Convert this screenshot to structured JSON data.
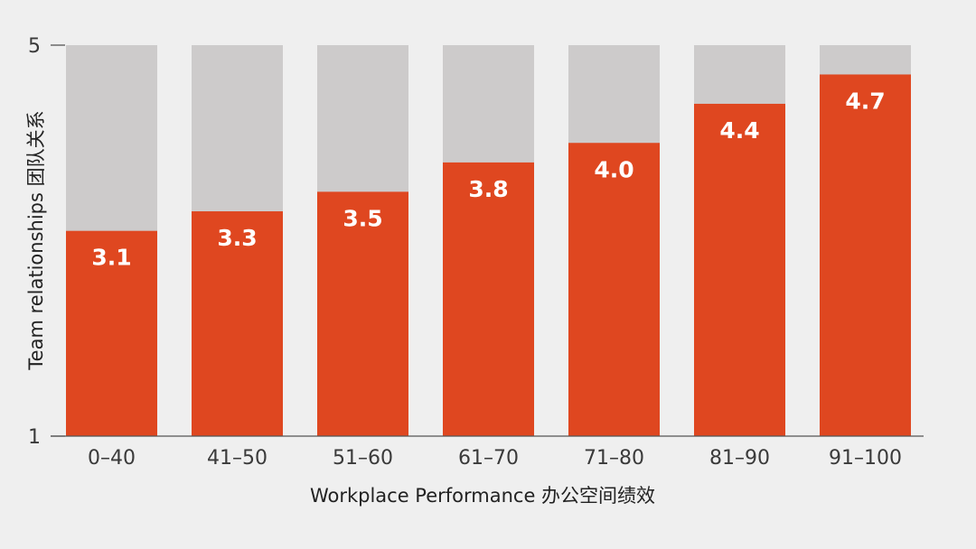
{
  "chart_data": {
    "type": "bar",
    "categories": [
      "0–40",
      "41–50",
      "51–60",
      "61–70",
      "71–80",
      "81–90",
      "91–100"
    ],
    "values": [
      3.1,
      3.3,
      3.5,
      3.8,
      4.0,
      4.4,
      4.7
    ],
    "value_labels": [
      "3.1",
      "3.3",
      "3.5",
      "3.8",
      "4.0",
      "4.4",
      "4.7"
    ],
    "xlabel": "Workplace Performance 办公空间绩效",
    "ylabel": "Team relationships 团队关系",
    "ylim": [
      1,
      5
    ],
    "yticks": [
      "1",
      "5"
    ],
    "grid": false,
    "colors": {
      "bar": "#df4720",
      "track": "#cdcbcb",
      "background": "#efefef",
      "axis": "#555555"
    }
  }
}
